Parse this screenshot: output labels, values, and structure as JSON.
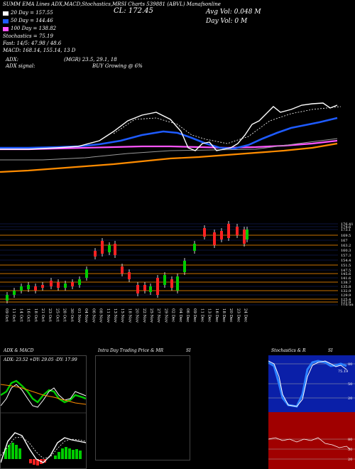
{
  "header": {
    "line1_left": "SUMM EMA Lines ADX,MACD,Stochastics,MRSI Charts 539881 (ABVL) Manafsonline",
    "line1_mid": "CL: 172.45",
    "line1_right": "Avg Vol: 0.048  M",
    "line2_right": "Day Vol: 0  M",
    "ema20": "20 Day = 157.55",
    "ema50": "50 Day = 144.46",
    "ema100": "100 Day = 138.82",
    "stochastics": "Stochastics = 75.19",
    "fast_sma": "Fast: 14/5: 47.98 / 48.6",
    "macd": "MACD: 168.14, 155.14, 13 D",
    "adx": "ADX:",
    "adx_values": "(MGR) 23.5, 29.1, 18",
    "adx_signal": "ADX signal:",
    "adx_signal_value": "BUY Growing @ 6%"
  },
  "colors": {
    "ema20": "#ffffff",
    "ema50": "#1e5bff",
    "ema100": "#ff55ff",
    "ema200": "#ff8c00",
    "up": "#00cc00",
    "down": "#ff2222"
  },
  "price_axis": [
    "176.41",
    "174.6",
    "173.1",
    "169.5",
    "167",
    "163.2",
    "160.3",
    "157.3",
    "154.4",
    "151.5",
    "147.5",
    "145.6",
    "141.6",
    "138.7",
    "135.8",
    "132.9",
    "129.9",
    "125.4",
    "121.9",
    "119.99"
  ],
  "dates": [
    "09 Oct",
    "11 Oct",
    "14 Oct",
    "16 Oct",
    "18 Oct",
    "21 Oct",
    "23 Oct",
    "25 Oct",
    "28 Oct",
    "30 Oct",
    "01 Nov",
    "04 Nov",
    "06 Nov",
    "08 Nov",
    "11 Nov",
    "13 Nov",
    "15 Nov",
    "18 Nov",
    "20 Nov",
    "22 Nov",
    "25 Nov",
    "27 Nov",
    "29 Nov",
    "02 Dec",
    "04 Dec",
    "06 Dec",
    "09 Dec",
    "11 Dec",
    "13 Dec",
    "16 Dec",
    "18 Dec",
    "20 Dec",
    "23 Dec",
    "24 Dec"
  ],
  "panels": {
    "adx_title": "ADX  & MACD",
    "adx_values": "ADX: 23.52  +DY: 29.05  -DY: 17.99",
    "intra_title": "Intra  Day Trading Price  & MR",
    "intra_si": "SI",
    "stoch_title": "Stochastics & R",
    "stoch_si": "SI",
    "stoch_levels": [
      "80",
      "50",
      "20"
    ],
    "mrsi_levels": [
      "80",
      "50",
      "20"
    ],
    "stoch_value": "75.19"
  }
}
